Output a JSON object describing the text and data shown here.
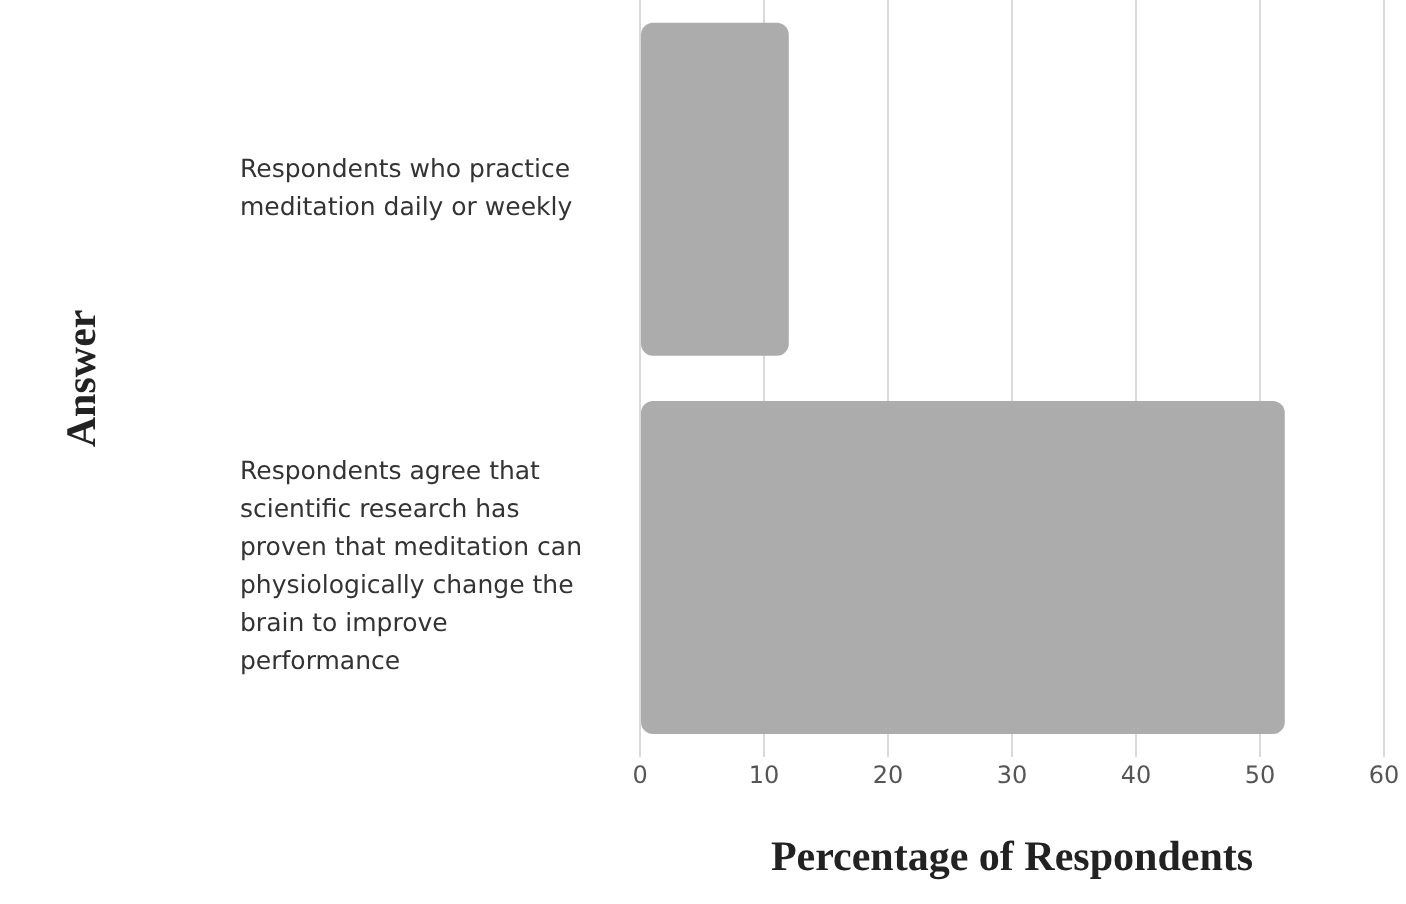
{
  "chart_data": {
    "type": "bar",
    "orientation": "horizontal",
    "xlabel": "Percentage of Respondents",
    "ylabel": "Answer",
    "categories": [
      "Respondents who practice meditation daily or weekly",
      "Respondents agree that scientific research has proven that meditation can physiologically change the brain to improve performance"
    ],
    "values": [
      12,
      52
    ],
    "color": "#acacac",
    "xlim": [
      0,
      60
    ],
    "xticks": [
      0,
      10,
      20,
      30,
      40,
      50,
      60
    ],
    "grid": "x",
    "legend": false
  }
}
